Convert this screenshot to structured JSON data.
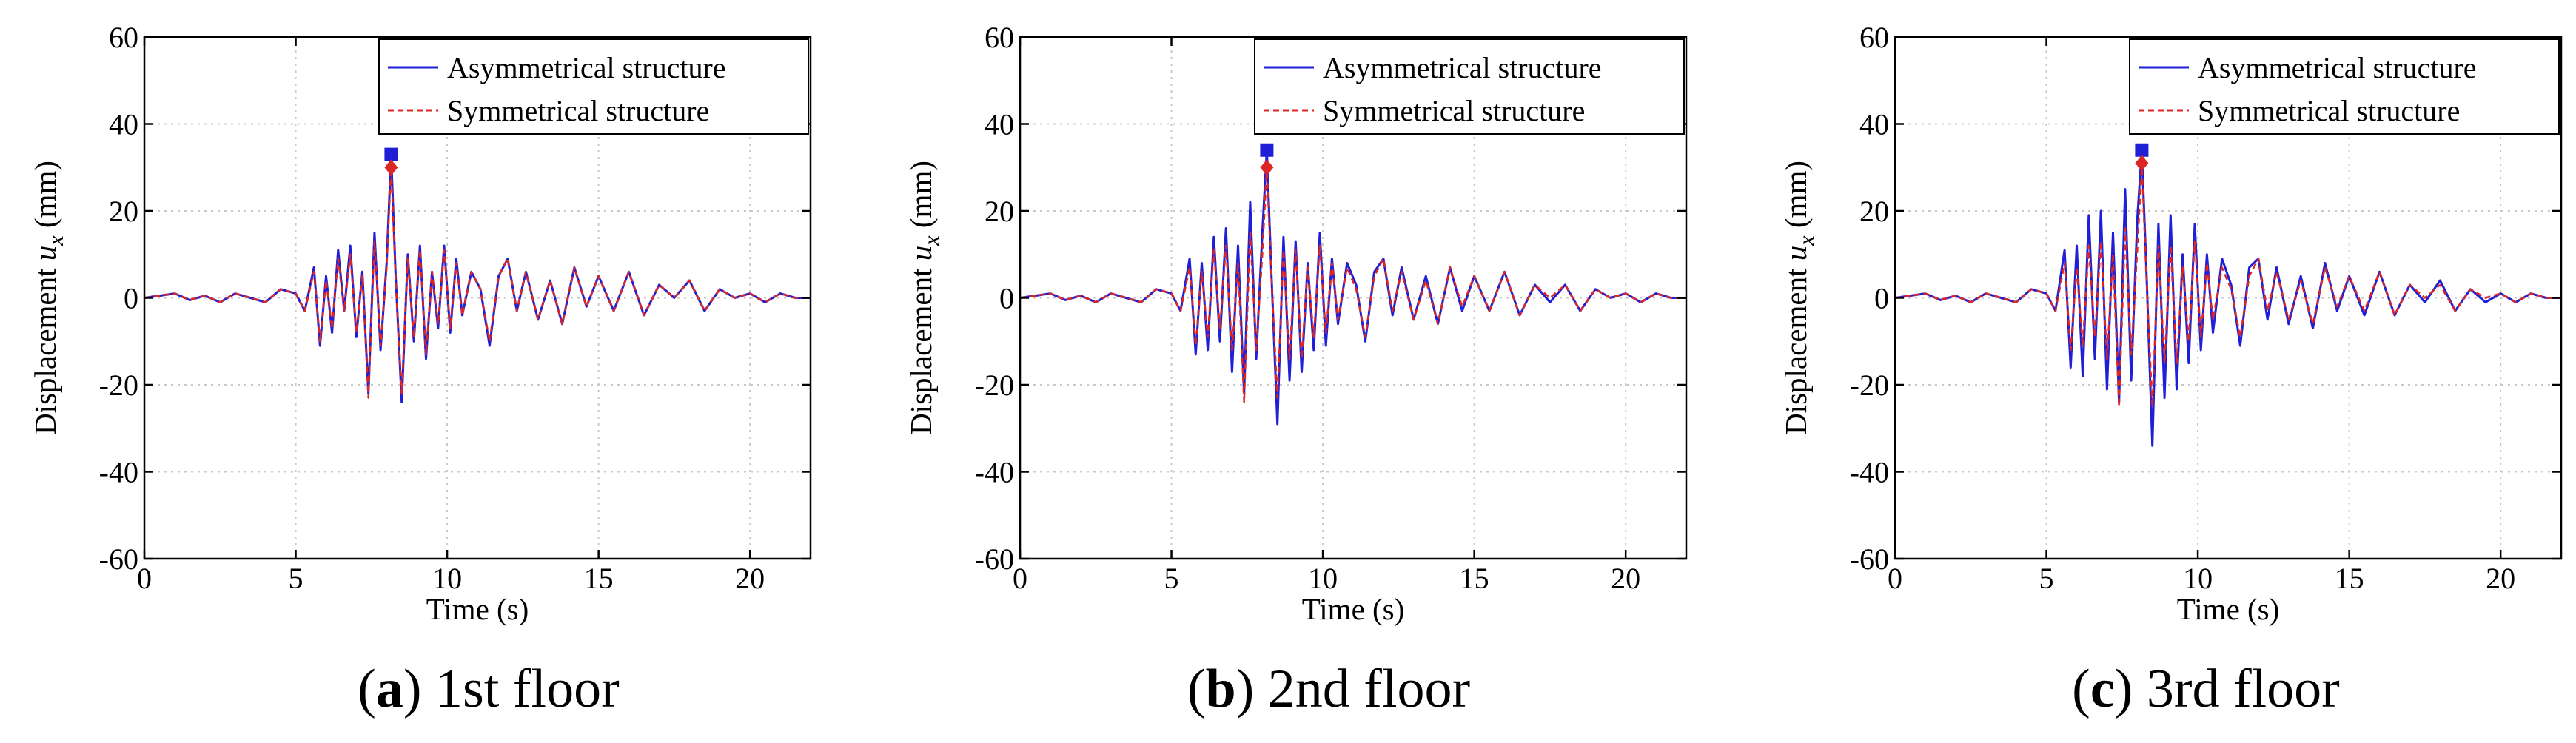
{
  "captions": [
    {
      "letter": "a",
      "text": "1st floor"
    },
    {
      "letter": "b",
      "text": "2nd floor"
    },
    {
      "letter": "c",
      "text": "3rd floor"
    }
  ],
  "colors": {
    "asymmetrical": "#1f1fd6",
    "symmetrical": "#dc2626",
    "peak_square": "#1f1fd6",
    "peak_diamond": "#dc2626",
    "grid": "#c8c8c8",
    "axes": "#000000"
  },
  "chart_data": [
    {
      "type": "line",
      "xlabel": "Time (s)",
      "ylabel_text": "Displacement",
      "ylabel_var": "u",
      "ylabel_sub": "x",
      "ylabel_unit": "(mm)",
      "xlim": [
        0,
        22
      ],
      "ylim": [
        -60,
        60
      ],
      "xticks": [
        0,
        5,
        10,
        15,
        20
      ],
      "yticks": [
        -60,
        -40,
        -20,
        0,
        20,
        40,
        60
      ],
      "grid": true,
      "legend_position": "top-right",
      "series": [
        {
          "name": "Asymmetrical structure",
          "style": "solid",
          "x": [
            0,
            0.5,
            1,
            1.5,
            2,
            2.5,
            3,
            3.5,
            4,
            4.5,
            5,
            5.3,
            5.6,
            5.8,
            6.0,
            6.2,
            6.4,
            6.6,
            6.8,
            7.0,
            7.2,
            7.4,
            7.6,
            7.8,
            8.0,
            8.15,
            8.3,
            8.5,
            8.7,
            8.9,
            9.1,
            9.3,
            9.5,
            9.7,
            9.9,
            10.1,
            10.3,
            10.5,
            10.8,
            11.1,
            11.4,
            11.7,
            12.0,
            12.3,
            12.6,
            13.0,
            13.4,
            13.8,
            14.2,
            14.6,
            15.0,
            15.5,
            16.0,
            16.5,
            17.0,
            17.5,
            18.0,
            18.5,
            19.0,
            19.5,
            20.0,
            20.5,
            21.0,
            21.5,
            22.0
          ],
          "values": [
            0,
            0.5,
            1,
            -0.5,
            0.5,
            -1,
            1,
            0,
            -1,
            2,
            1,
            -3,
            7,
            -11,
            5,
            -8,
            11,
            -3,
            12,
            -9,
            6,
            -22,
            15,
            -12,
            8,
            33,
            5,
            -24,
            10,
            -10,
            12,
            -14,
            6,
            -7,
            12,
            -8,
            9,
            -4,
            6,
            2,
            -11,
            5,
            9,
            -3,
            6,
            -5,
            4,
            -6,
            7,
            -2,
            5,
            -3,
            6,
            -4,
            3,
            0,
            4,
            -3,
            2,
            0,
            1,
            -1,
            1,
            0,
            0
          ]
        },
        {
          "name": "Symmetrical structure",
          "style": "dashed",
          "x": [
            0,
            0.5,
            1,
            1.5,
            2,
            2.5,
            3,
            3.5,
            4,
            4.5,
            5,
            5.3,
            5.6,
            5.8,
            6.0,
            6.2,
            6.4,
            6.6,
            6.8,
            7.0,
            7.2,
            7.4,
            7.6,
            7.8,
            8.0,
            8.15,
            8.3,
            8.5,
            8.7,
            8.9,
            9.1,
            9.3,
            9.5,
            9.7,
            9.9,
            10.1,
            10.3,
            10.5,
            10.8,
            11.1,
            11.4,
            11.7,
            12.0,
            12.3,
            12.6,
            13.0,
            13.4,
            13.8,
            14.2,
            14.6,
            15.0,
            15.5,
            16.0,
            16.5,
            17.0,
            17.5,
            18.0,
            18.5,
            19.0,
            19.5,
            20.0,
            20.5,
            21.0,
            21.5,
            22.0
          ],
          "values": [
            0,
            0.5,
            1,
            -0.5,
            0.5,
            -1,
            1,
            0,
            -1,
            2,
            1,
            -3,
            6,
            -10,
            4,
            -7,
            9,
            -3,
            10,
            -8,
            5,
            -23,
            13,
            -11,
            7,
            30,
            4,
            -22,
            9,
            -9,
            11,
            -13,
            6,
            -6,
            11,
            -7,
            8,
            -4,
            6,
            2,
            -10,
            5,
            9,
            -3,
            6,
            -5,
            4,
            -6,
            7,
            -2,
            5,
            -3,
            6,
            -4,
            3,
            0,
            4,
            -3,
            2,
            0,
            1,
            -1,
            1,
            0,
            0
          ]
        }
      ],
      "peaks": {
        "asymmetrical": {
          "x": 8.15,
          "y": 33
        },
        "symmetrical": {
          "x": 8.15,
          "y": 30
        }
      }
    },
    {
      "type": "line",
      "xlabel": "Time (s)",
      "ylabel_text": "Displacement",
      "ylabel_var": "u",
      "ylabel_sub": "x",
      "ylabel_unit": "(mm)",
      "xlim": [
        0,
        22
      ],
      "ylim": [
        -60,
        60
      ],
      "xticks": [
        0,
        5,
        10,
        15,
        20
      ],
      "yticks": [
        -60,
        -40,
        -20,
        0,
        20,
        40,
        60
      ],
      "grid": true,
      "legend_position": "top-right",
      "series": [
        {
          "name": "Asymmetrical structure",
          "style": "solid",
          "x": [
            0,
            0.5,
            1,
            1.5,
            2,
            2.5,
            3,
            3.5,
            4,
            4.5,
            5,
            5.3,
            5.6,
            5.8,
            6.0,
            6.2,
            6.4,
            6.6,
            6.8,
            7.0,
            7.2,
            7.4,
            7.6,
            7.8,
            8.0,
            8.15,
            8.3,
            8.5,
            8.7,
            8.9,
            9.1,
            9.3,
            9.5,
            9.7,
            9.9,
            10.1,
            10.3,
            10.5,
            10.8,
            11.1,
            11.4,
            11.7,
            12.0,
            12.3,
            12.6,
            13.0,
            13.4,
            13.8,
            14.2,
            14.6,
            15.0,
            15.5,
            16.0,
            16.5,
            17.0,
            17.5,
            18.0,
            18.5,
            19.0,
            19.5,
            20.0,
            20.5,
            21.0,
            21.5,
            22.0
          ],
          "values": [
            0,
            0.5,
            1,
            -0.5,
            0.5,
            -1,
            1,
            0,
            -1,
            2,
            1,
            -3,
            9,
            -13,
            8,
            -12,
            14,
            -10,
            16,
            -17,
            12,
            -22,
            22,
            -14,
            15,
            34,
            6,
            -29,
            14,
            -19,
            13,
            -17,
            8,
            -12,
            15,
            -11,
            9,
            -6,
            8,
            3,
            -10,
            6,
            9,
            -4,
            7,
            -5,
            5,
            -6,
            7,
            -3,
            5,
            -3,
            6,
            -4,
            3,
            -1,
            3,
            -3,
            2,
            0,
            1,
            -1,
            1,
            0,
            0
          ]
        },
        {
          "name": "Symmetrical structure",
          "style": "dashed",
          "x": [
            0,
            0.5,
            1,
            1.5,
            2,
            2.5,
            3,
            3.5,
            4,
            4.5,
            5,
            5.3,
            5.6,
            5.8,
            6.0,
            6.2,
            6.4,
            6.6,
            6.8,
            7.0,
            7.2,
            7.4,
            7.6,
            7.8,
            8.0,
            8.15,
            8.3,
            8.5,
            8.7,
            8.9,
            9.1,
            9.3,
            9.5,
            9.7,
            9.9,
            10.1,
            10.3,
            10.5,
            10.8,
            11.1,
            11.4,
            11.7,
            12.0,
            12.3,
            12.6,
            13.0,
            13.4,
            13.8,
            14.2,
            14.6,
            15.0,
            15.5,
            16.0,
            16.5,
            17.0,
            17.5,
            18.0,
            18.5,
            19.0,
            19.5,
            20.0,
            20.5,
            21.0,
            21.5,
            22.0
          ],
          "values": [
            0,
            0.5,
            1,
            -0.5,
            0.5,
            -1,
            1,
            0,
            -1,
            2,
            1,
            -3,
            7,
            -11,
            6,
            -9,
            11,
            -7,
            12,
            -12,
            8,
            -24,
            15,
            -12,
            10,
            30,
            5,
            -23,
            11,
            -14,
            11,
            -14,
            7,
            -9,
            12,
            -8,
            8,
            -5,
            7,
            2,
            -9,
            5,
            9,
            -3,
            6,
            -5,
            4,
            -6,
            7,
            -2,
            5,
            -3,
            6,
            -4,
            3,
            0,
            3,
            -3,
            2,
            0,
            1,
            -1,
            1,
            0,
            0
          ]
        }
      ],
      "peaks": {
        "asymmetrical": {
          "x": 8.15,
          "y": 34
        },
        "symmetrical": {
          "x": 8.15,
          "y": 30
        }
      }
    },
    {
      "type": "line",
      "xlabel": "Time (s)",
      "ylabel_text": "Displacement",
      "ylabel_var": "u",
      "ylabel_sub": "x",
      "ylabel_unit": "(mm)",
      "xlim": [
        0,
        22
      ],
      "ylim": [
        -60,
        60
      ],
      "xticks": [
        0,
        5,
        10,
        15,
        20
      ],
      "yticks": [
        -60,
        -40,
        -20,
        0,
        20,
        40,
        60
      ],
      "grid": true,
      "legend_position": "top-right",
      "series": [
        {
          "name": "Asymmetrical structure",
          "style": "solid",
          "x": [
            0,
            0.5,
            1,
            1.5,
            2,
            2.5,
            3,
            3.5,
            4,
            4.5,
            5,
            5.3,
            5.6,
            5.8,
            6.0,
            6.2,
            6.4,
            6.6,
            6.8,
            7.0,
            7.2,
            7.4,
            7.6,
            7.8,
            8.0,
            8.15,
            8.3,
            8.5,
            8.7,
            8.9,
            9.1,
            9.3,
            9.5,
            9.7,
            9.9,
            10.1,
            10.3,
            10.5,
            10.8,
            11.1,
            11.4,
            11.7,
            12.0,
            12.3,
            12.6,
            13.0,
            13.4,
            13.8,
            14.2,
            14.6,
            15.0,
            15.5,
            16.0,
            16.5,
            17.0,
            17.5,
            18.0,
            18.5,
            19.0,
            19.5,
            20.0,
            20.5,
            21.0,
            21.5,
            22.0
          ],
          "values": [
            0,
            0.5,
            1,
            -0.5,
            0.5,
            -1,
            1,
            0,
            -1,
            2,
            1,
            -3,
            11,
            -16,
            12,
            -18,
            19,
            -14,
            20,
            -21,
            15,
            -24,
            25,
            -19,
            18,
            34,
            7,
            -34,
            17,
            -23,
            19,
            -21,
            10,
            -15,
            17,
            -12,
            10,
            -8,
            9,
            3,
            -11,
            7,
            9,
            -5,
            7,
            -6,
            5,
            -7,
            8,
            -3,
            5,
            -4,
            6,
            -4,
            3,
            -1,
            4,
            -3,
            2,
            -1,
            1,
            -1,
            1,
            0,
            0
          ]
        },
        {
          "name": "Symmetrical structure",
          "style": "dashed",
          "x": [
            0,
            0.5,
            1,
            1.5,
            2,
            2.5,
            3,
            3.5,
            4,
            4.5,
            5,
            5.3,
            5.6,
            5.8,
            6.0,
            6.2,
            6.4,
            6.6,
            6.8,
            7.0,
            7.2,
            7.4,
            7.6,
            7.8,
            8.0,
            8.15,
            8.3,
            8.5,
            8.7,
            8.9,
            9.1,
            9.3,
            9.5,
            9.7,
            9.9,
            10.1,
            10.3,
            10.5,
            10.8,
            11.1,
            11.4,
            11.7,
            12.0,
            12.3,
            12.6,
            13.0,
            13.4,
            13.8,
            14.2,
            14.6,
            15.0,
            15.5,
            16.0,
            16.5,
            17.0,
            17.5,
            18.0,
            18.5,
            19.0,
            19.5,
            20.0,
            20.5,
            21.0,
            21.5,
            22.0
          ],
          "values": [
            0,
            0.5,
            1,
            -0.5,
            0.5,
            -1,
            1,
            0,
            -1,
            2,
            1,
            -3,
            8,
            -12,
            7,
            -11,
            12,
            -9,
            13,
            -14,
            10,
            -25,
            16,
            -13,
            11,
            31,
            5,
            -25,
            12,
            -15,
            12,
            -15,
            7,
            -10,
            13,
            -9,
            8,
            -5,
            7,
            2,
            -9,
            5,
            9,
            -3,
            6,
            -5,
            4,
            -6,
            7,
            -2,
            5,
            -3,
            6,
            -4,
            3,
            0,
            3,
            -3,
            2,
            0,
            1,
            -1,
            1,
            0,
            0
          ]
        }
      ],
      "peaks": {
        "asymmetrical": {
          "x": 8.15,
          "y": 34
        },
        "symmetrical": {
          "x": 8.15,
          "y": 31
        }
      }
    }
  ]
}
